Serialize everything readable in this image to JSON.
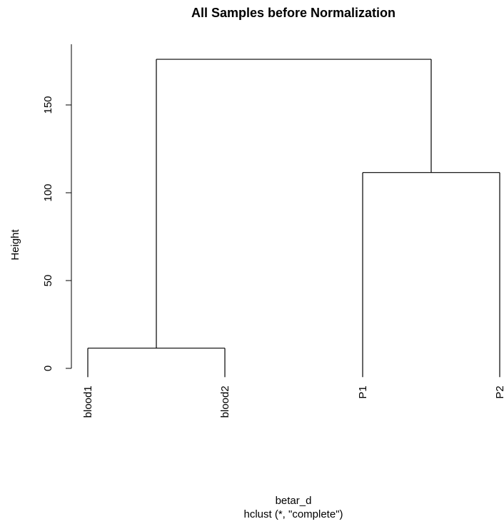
{
  "chart_data": {
    "type": "dendrogram",
    "title": "All Samples before Normalization",
    "ylabel": "Height",
    "xlabel": "betar_d",
    "sublabel": "hclust (*, \"complete\")",
    "ylim": [
      0,
      185
    ],
    "yticks": [
      0,
      50,
      100,
      150
    ],
    "leaves": [
      "blood1",
      "blood2",
      "P1",
      "P2"
    ],
    "merges": [
      {
        "left": "blood1",
        "right": "blood2",
        "height": 11.5
      },
      {
        "left": "P1",
        "right": "P2",
        "height": 111.5
      },
      {
        "left": 0,
        "right": 1,
        "height": 176
      }
    ],
    "leaf_label_height": -5
  }
}
